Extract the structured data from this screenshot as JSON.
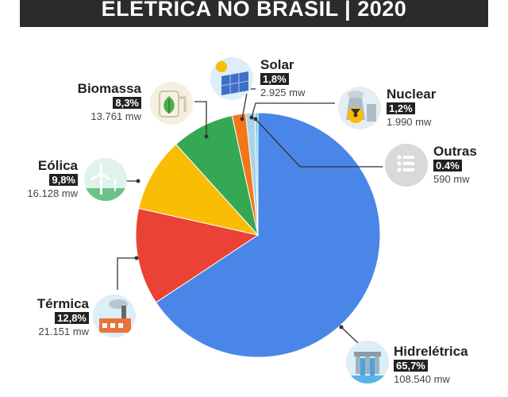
{
  "title": "ELETRICA NO BRASIL | 2020",
  "chart_data": {
    "type": "pie",
    "categories": [
      "Hidrelétrica",
      "Térmica",
      "Eólica",
      "Biomassa",
      "Solar",
      "Nuclear",
      "Outras"
    ],
    "values": [
      65.7,
      12.8,
      9.8,
      8.3,
      1.8,
      1.2,
      0.4
    ],
    "percent_labels": [
      "65,7%",
      "12,8%",
      "9,8%",
      "8,3%",
      "1,8%",
      "1,2%",
      "0.4%"
    ],
    "mw_labels": [
      "108.540 mw",
      "21.151 mw",
      "16.128 mw",
      "13.761 mw",
      "2.925 mw",
      "1.990 mw",
      "590 mw"
    ],
    "colors": [
      "#4a86e8",
      "#ea4335",
      "#fbbc04",
      "#34a853",
      "#f4761b",
      "#a9d4e8",
      "#7fd3e6"
    ]
  },
  "icons": [
    "dam-icon",
    "factory-icon",
    "wind-turbine-icon",
    "biomass-leaf-icon",
    "solar-panel-icon",
    "nuclear-plant-icon",
    "list-icon"
  ]
}
